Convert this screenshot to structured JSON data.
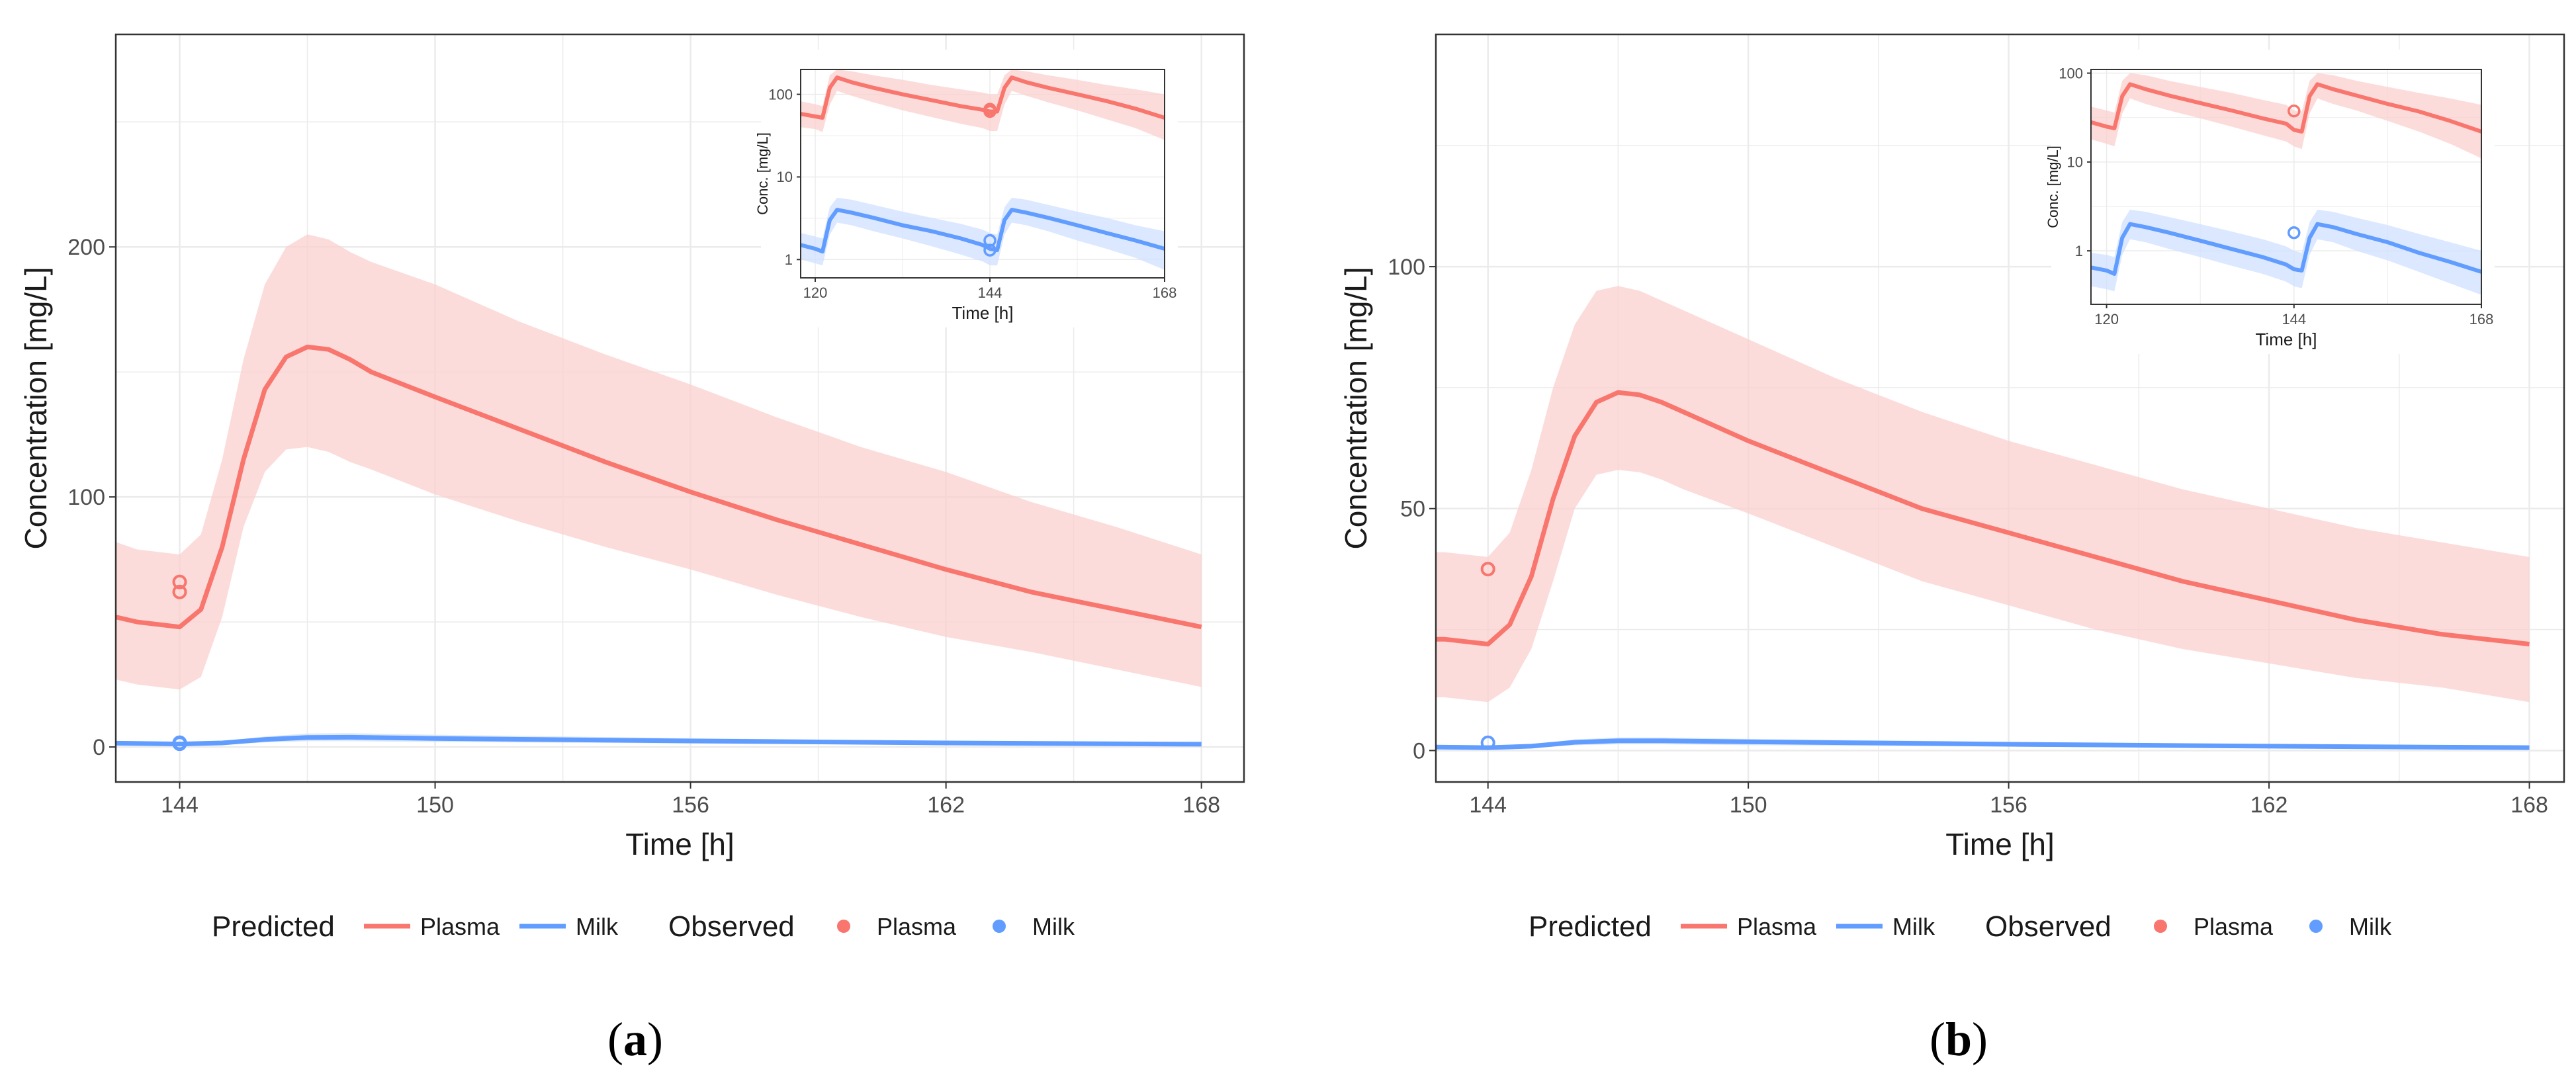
{
  "colors": {
    "plasma": "#F8766D",
    "plasma_band": "#FBD0CD",
    "milk": "#619CFF",
    "milk_band": "#CFE0FF",
    "grid": "#EBEBEB",
    "panel_border": "#333333",
    "axis_text": "#4D4D4D",
    "text": "#1A1A1A"
  },
  "legend": {
    "predicted_title": "Predicted",
    "observed_title": "Observed",
    "plasma_label": "Plasma",
    "milk_label": "Milk"
  },
  "chart_data": [
    {
      "panel": "a",
      "caption_letter": "a",
      "type": "line",
      "xlabel": "Time [h]",
      "ylabel": "Concentration [mg/L]",
      "xlim": [
        142.5,
        169
      ],
      "ylim": [
        -14,
        285
      ],
      "xticks": [
        144,
        150,
        156,
        162,
        168
      ],
      "yticks": [
        0,
        100,
        200
      ],
      "series": [
        {
          "name": "Predicted Plasma",
          "x": [
            142.5,
            143,
            144,
            144.5,
            145,
            145.5,
            146,
            146.5,
            147,
            147.5,
            148,
            148.5,
            150,
            152,
            154,
            156,
            158,
            160,
            162,
            164,
            166,
            168
          ],
          "y": [
            52,
            50,
            48,
            55,
            80,
            115,
            143,
            156,
            160,
            159,
            155,
            150,
            140,
            127,
            114,
            102,
            91,
            81,
            71,
            62,
            55,
            48
          ],
          "lower": [
            27,
            25,
            23,
            28,
            52,
            88,
            110,
            119,
            120,
            118,
            114,
            111,
            101,
            90,
            80,
            71,
            61,
            52,
            44,
            38,
            31,
            24
          ],
          "upper": [
            82,
            79,
            77,
            85,
            115,
            155,
            185,
            200,
            205,
            203,
            198,
            194,
            185,
            170,
            157,
            145,
            132,
            120,
            110,
            98,
            88,
            77
          ]
        },
        {
          "name": "Predicted Milk",
          "x": [
            142.5,
            144,
            145,
            146,
            147,
            148,
            150,
            156,
            162,
            168
          ],
          "y": [
            1.5,
            1.2,
            1.6,
            3.0,
            3.8,
            3.9,
            3.4,
            2.4,
            1.6,
            1.1
          ],
          "lower": [
            0.8,
            0.7,
            0.9,
            1.8,
            2.3,
            2.3,
            2.0,
            1.4,
            0.9,
            0.6
          ],
          "upper": [
            2.2,
            1.8,
            2.3,
            4.2,
            5.4,
            5.5,
            4.9,
            3.5,
            2.4,
            1.7
          ]
        },
        {
          "name": "Observed Plasma",
          "x": [
            144,
            144
          ],
          "y": [
            66,
            62
          ]
        },
        {
          "name": "Observed Milk",
          "x": [
            144,
            144
          ],
          "y": [
            1.7,
            1.3
          ]
        }
      ],
      "inset": {
        "type": "line",
        "scale": "log",
        "xlabel": "Time [h]",
        "ylabel": "Conc. [mg/L]",
        "xlim": [
          118,
          168
        ],
        "ylim": [
          0.6,
          200
        ],
        "xticks": [
          120,
          144,
          168
        ],
        "yticks": [
          1,
          10,
          100
        ],
        "series": [
          {
            "name": "Predicted Plasma",
            "x": [
              118,
              120,
              121,
              122,
              123,
              125,
              128,
              132,
              136,
              140,
              143,
              144,
              145,
              146,
              147,
              149,
              152,
              156,
              160,
              164,
              168
            ],
            "y": [
              58,
              54,
              52,
              120,
              160,
              140,
              120,
              100,
              85,
              72,
              65,
              62,
              62,
              120,
              160,
              140,
              120,
              100,
              83,
              67,
              52
            ],
            "lower": [
              40,
              38,
              35,
              75,
              110,
              96,
              80,
              64,
              53,
              44,
              39,
              36,
              36,
              75,
              110,
              96,
              80,
              64,
              50,
              39,
              28
            ],
            "upper": [
              82,
              76,
              72,
              170,
              200,
              190,
              170,
              150,
              130,
              115,
              105,
              100,
              100,
              170,
              200,
              190,
              170,
              150,
              130,
              115,
              100
            ]
          },
          {
            "name": "Predicted Milk",
            "x": [
              118,
              120,
              121,
              122,
              123,
              125,
              128,
              132,
              136,
              140,
              143,
              144,
              145,
              146,
              147,
              149,
              152,
              156,
              160,
              164,
              168
            ],
            "y": [
              1.5,
              1.35,
              1.25,
              3.0,
              4.0,
              3.7,
              3.2,
              2.6,
              2.2,
              1.8,
              1.5,
              1.35,
              1.3,
              3.0,
              4.0,
              3.7,
              3.2,
              2.6,
              2.1,
              1.7,
              1.35
            ],
            "lower": [
              1.0,
              0.9,
              0.85,
              2.0,
              2.8,
              2.6,
              2.2,
              1.8,
              1.45,
              1.15,
              0.95,
              0.85,
              0.85,
              2.0,
              2.8,
              2.6,
              2.2,
              1.7,
              1.35,
              1.05,
              0.75
            ],
            "upper": [
              2.1,
              1.9,
              1.8,
              4.3,
              5.6,
              5.3,
              4.6,
              3.8,
              3.2,
              2.7,
              2.3,
              2.1,
              2.0,
              4.3,
              5.6,
              5.3,
              4.6,
              3.8,
              3.2,
              2.6,
              2.2
            ]
          },
          {
            "name": "Observed Plasma",
            "x": [
              144,
              144
            ],
            "y": [
              66,
              62
            ]
          },
          {
            "name": "Observed Milk",
            "x": [
              144,
              144
            ],
            "y": [
              1.7,
              1.3
            ]
          }
        ]
      }
    },
    {
      "panel": "b",
      "caption_letter": "b",
      "type": "line",
      "xlabel": "Time [h]",
      "ylabel": "Concentration [mg/L]",
      "xlim": [
        142.8,
        168.8
      ],
      "ylim": [
        -6.5,
        148
      ],
      "xticks": [
        144,
        150,
        156,
        162,
        168
      ],
      "yticks": [
        0,
        50,
        100
      ],
      "series": [
        {
          "name": "Predicted Plasma",
          "x": [
            142.8,
            143,
            144,
            144.5,
            145,
            145.5,
            146,
            146.5,
            147,
            147.5,
            148,
            148.5,
            150,
            152,
            154,
            156,
            158,
            160,
            162,
            164,
            166,
            168
          ],
          "y": [
            23,
            23,
            22,
            26,
            36,
            52,
            65,
            72,
            74,
            73.5,
            72,
            70,
            64,
            57,
            50,
            45,
            40,
            35,
            31,
            27,
            24,
            22
          ],
          "lower": [
            11,
            11,
            10,
            13,
            21,
            35,
            50,
            57,
            58,
            57.5,
            56,
            54,
            49,
            42,
            35,
            30,
            25,
            21,
            18,
            15,
            13,
            10
          ],
          "upper": [
            41,
            41,
            40,
            45,
            58,
            75,
            88,
            95,
            96,
            95,
            93,
            91,
            85,
            77,
            70,
            64,
            59,
            54,
            50,
            46,
            43,
            40
          ]
        },
        {
          "name": "Predicted Milk",
          "x": [
            142.8,
            144,
            145,
            146,
            147,
            148,
            150,
            156,
            162,
            168
          ],
          "y": [
            0.7,
            0.6,
            0.9,
            1.7,
            2.0,
            2.0,
            1.8,
            1.3,
            0.9,
            0.6
          ],
          "lower": [
            0.4,
            0.35,
            0.5,
            1.1,
            1.3,
            1.3,
            1.1,
            0.8,
            0.5,
            0.3
          ],
          "upper": [
            1.0,
            0.9,
            1.2,
            2.3,
            2.7,
            2.7,
            2.4,
            1.8,
            1.3,
            0.9
          ]
        },
        {
          "name": "Observed Plasma",
          "x": [
            144
          ],
          "y": [
            37.5
          ]
        },
        {
          "name": "Observed Milk",
          "x": [
            144
          ],
          "y": [
            1.6
          ]
        }
      ],
      "inset": {
        "type": "line",
        "scale": "log",
        "xlabel": "Time [h]",
        "ylabel": "Conc. [mg/L]",
        "xlim": [
          118,
          168
        ],
        "ylim": [
          0.25,
          110
        ],
        "xticks": [
          120,
          144,
          168
        ],
        "yticks": [
          1,
          10,
          100
        ],
        "series": [
          {
            "name": "Predicted Plasma",
            "x": [
              118,
              120,
              121,
              122,
              123,
              125,
              128,
              132,
              136,
              140,
              143,
              144,
              145,
              146,
              147,
              149,
              152,
              156,
              160,
              164,
              168
            ],
            "y": [
              28,
              25,
              24,
              55,
              75,
              66,
              56,
              46,
              38,
              31,
              27,
              23,
              22,
              55,
              75,
              66,
              56,
              45,
              37,
              29,
              22
            ],
            "lower": [
              18,
              16,
              15,
              35,
              52,
              45,
              38,
              31,
              25,
              20,
              17,
              15,
              14,
              35,
              52,
              45,
              38,
              29,
              22,
              16,
              11
            ],
            "upper": [
              42,
              38,
              36,
              82,
              100,
              95,
              82,
              70,
              60,
              50,
              44,
              38,
              37,
              82,
              100,
              95,
              82,
              70,
              60,
              52,
              44
            ]
          },
          {
            "name": "Predicted Milk",
            "x": [
              118,
              120,
              121,
              122,
              123,
              125,
              128,
              132,
              136,
              140,
              143,
              144,
              145,
              146,
              147,
              149,
              152,
              156,
              160,
              164,
              168
            ],
            "y": [
              0.65,
              0.6,
              0.55,
              1.4,
              2.0,
              1.85,
              1.6,
              1.3,
              1.05,
              0.85,
              0.7,
              0.62,
              0.6,
              1.4,
              2.0,
              1.85,
              1.55,
              1.25,
              0.95,
              0.75,
              0.58
            ],
            "lower": [
              0.4,
              0.37,
              0.35,
              0.9,
              1.35,
              1.25,
              1.05,
              0.85,
              0.68,
              0.55,
              0.45,
              0.4,
              0.38,
              0.9,
              1.35,
              1.25,
              1.0,
              0.78,
              0.58,
              0.43,
              0.32
            ],
            "upper": [
              0.95,
              0.9,
              0.85,
              2.1,
              2.9,
              2.75,
              2.4,
              2.0,
              1.65,
              1.35,
              1.12,
              1.0,
              0.95,
              2.1,
              2.9,
              2.75,
              2.35,
              1.95,
              1.55,
              1.25,
              1.0
            ]
          },
          {
            "name": "Observed Plasma",
            "x": [
              144
            ],
            "y": [
              37.5
            ]
          },
          {
            "name": "Observed Milk",
            "x": [
              144
            ],
            "y": [
              1.6
            ]
          }
        ]
      }
    }
  ]
}
